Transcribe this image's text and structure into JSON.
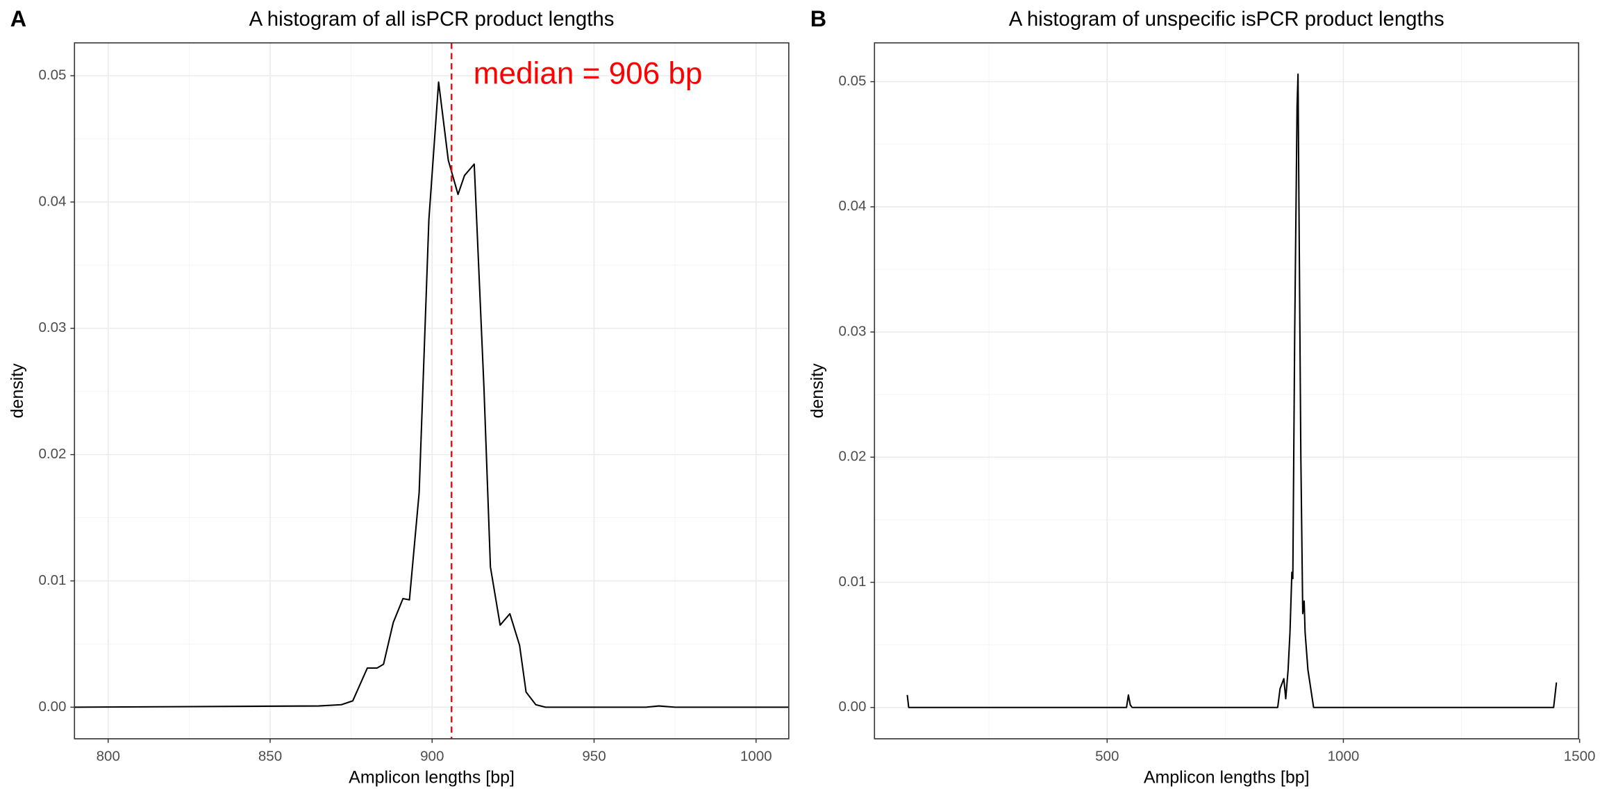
{
  "chart_data": [
    {
      "type": "line",
      "panel_label": "A",
      "title": "A histogram of all isPCR product lengths",
      "x_label": "Amplicon lengths [bp]",
      "y_label": "density",
      "x": [
        789.6,
        865,
        872,
        875.5,
        880,
        883,
        885,
        888,
        891,
        893,
        896,
        899,
        902,
        905,
        908,
        910,
        913,
        916,
        918,
        921,
        924,
        927,
        929,
        932,
        935,
        966,
        970,
        975,
        1010.1
      ],
      "values": [
        0,
        0.0001,
        0.0002,
        0.0005,
        0.0031,
        0.0031,
        0.0034,
        0.0067,
        0.0086,
        0.0085,
        0.017,
        0.0386,
        0.0495,
        0.0433,
        0.0406,
        0.0421,
        0.043,
        0.0253,
        0.0111,
        0.0065,
        0.0074,
        0.0049,
        0.0012,
        0.0002,
        0,
        0,
        0.0001,
        0,
        0
      ],
      "color": "#000000",
      "median_line": {
        "x": 906,
        "color": "#ff0000"
      },
      "annotation": "median = 906 bp",
      "annotation_color": "#ff0000",
      "xlim": [
        789.6,
        1010.1
      ],
      "ylim": [
        -0.0025,
        0.0526
      ],
      "xticks": [
        800,
        850,
        900,
        950,
        1000
      ],
      "yticks": [
        {
          "value": 0,
          "label": "0.00"
        },
        0.01,
        0.02,
        0.03,
        0.04,
        0.05
      ],
      "grid": true
    },
    {
      "type": "line",
      "panel_label": "B",
      "title": "A histogram of unspecific isPCR product lengths",
      "x_label": "Amplicon lengths [bp]",
      "y_label": "density",
      "x": [
        77,
        80,
        541,
        545,
        549,
        553,
        861,
        866,
        874,
        878,
        883,
        887,
        891,
        893,
        897,
        902,
        904,
        906,
        910,
        914,
        917,
        919,
        925,
        937,
        1445,
        1451
      ],
      "values": [
        0.001,
        0,
        0,
        0.001,
        0.0002,
        0,
        0,
        0.0015,
        0.0023,
        0.0007,
        0.003,
        0.006,
        0.0108,
        0.0103,
        0.03,
        0.048,
        0.0506,
        0.04,
        0.02,
        0.0075,
        0.0085,
        0.006,
        0.003,
        0,
        0,
        0.002
      ],
      "color": "#000000",
      "xlim": [
        7.6,
        1497.8
      ],
      "ylim": [
        -0.0025,
        0.0531
      ],
      "xticks": [
        500,
        1000,
        1500
      ],
      "yticks": [
        {
          "value": 0,
          "label": "0.00"
        },
        0.01,
        0.02,
        0.03,
        0.04,
        0.05
      ],
      "grid": true
    }
  ]
}
